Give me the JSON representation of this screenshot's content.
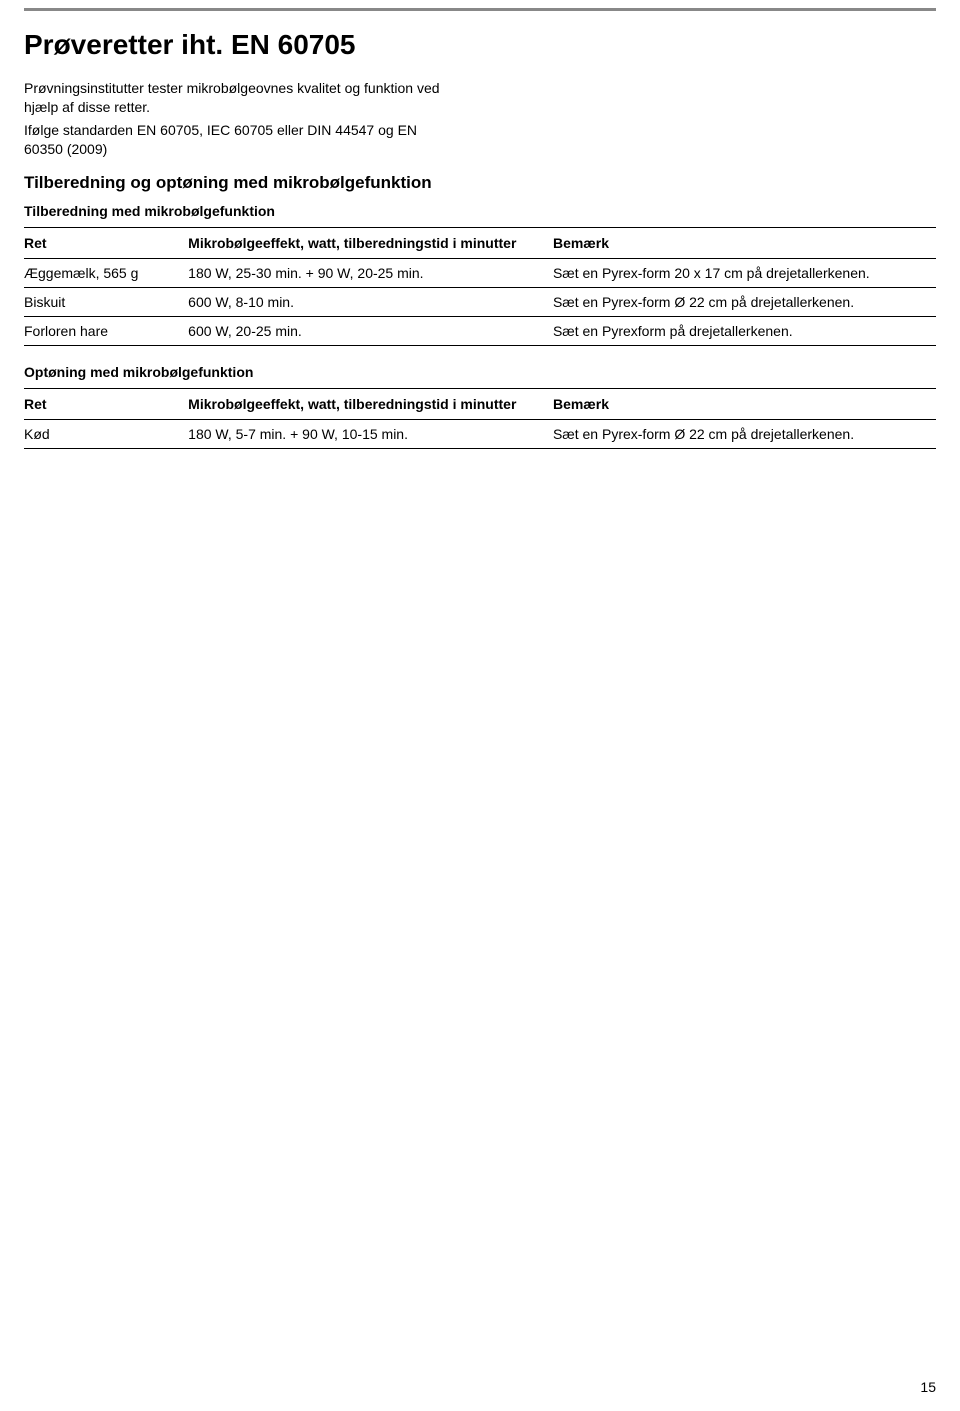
{
  "page_title": "Prøveretter iht. EN 60705",
  "intro_line1": "Prøvningsinstitutter tester mikrobølgeovnes kvalitet og funktion ved hjælp af disse retter.",
  "intro_line2": "Ifølge standarden EN 60705, IEC 60705 eller DIN 44547 og EN 60350 (2009)",
  "section1_title": "Tilberedning og optøning med mikrobølgefunktion",
  "sub1_title": "Tilberedning med mikrobølgefunktion",
  "table1": {
    "headers": {
      "ret": "Ret",
      "effekt": "Mikrobølgeeffekt, watt, tilberedningstid i minutter",
      "remark": "Bemærk"
    },
    "rows": [
      {
        "ret": "Æggemælk, 565 g",
        "effekt": "180 W, 25-30 min. + 90 W, 20-25 min.",
        "remark": "Sæt en Pyrex-form 20 x 17 cm på drejetallerkenen."
      },
      {
        "ret": "Biskuit",
        "effekt": "600 W, 8-10 min.",
        "remark": "Sæt en Pyrex-form Ø 22 cm på drejetallerkenen."
      },
      {
        "ret": "Forloren hare",
        "effekt": "600 W, 20-25 min.",
        "remark": "Sæt en Pyrexform på drejetallerkenen."
      }
    ]
  },
  "sub2_title": "Optøning med mikrobølgefunktion",
  "table2": {
    "headers": {
      "ret": "Ret",
      "effekt": "Mikrobølgeeffekt, watt, tilberedningstid i minutter",
      "remark": "Bemærk"
    },
    "rows": [
      {
        "ret": "Kød",
        "effekt": "180 W, 5-7 min. + 90 W, 10-15 min.",
        "remark": "Sæt en Pyrex-form Ø 22 cm på drejetallerkenen."
      }
    ]
  },
  "page_number": "15"
}
